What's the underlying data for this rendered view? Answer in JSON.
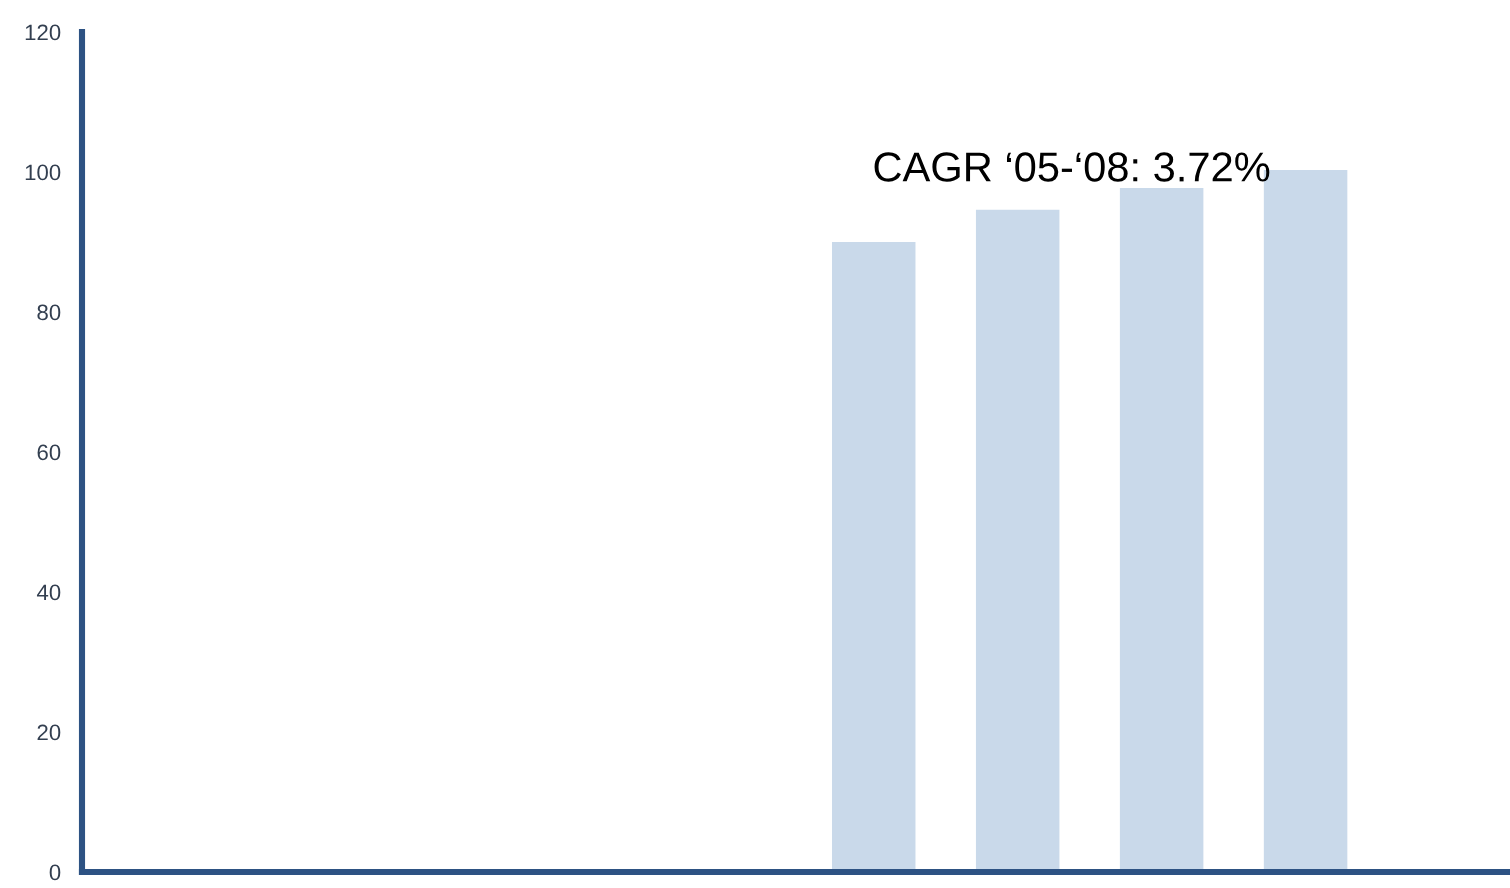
{
  "chart_data": {
    "type": "bar",
    "categories": [
      null,
      null,
      null,
      null,
      null,
      null,
      null,
      null,
      null,
      null
    ],
    "values": [
      null,
      null,
      null,
      null,
      null,
      90,
      94.6,
      97.7,
      100.3,
      null
    ],
    "color": "#c9d9ea",
    "ylim": [
      0,
      120
    ],
    "yticks": [
      0,
      20,
      40,
      60,
      80,
      100,
      120
    ],
    "annotations": [
      "CAGR ‘05-‘08: 3.72%"
    ],
    "grid": false,
    "legend": false
  }
}
